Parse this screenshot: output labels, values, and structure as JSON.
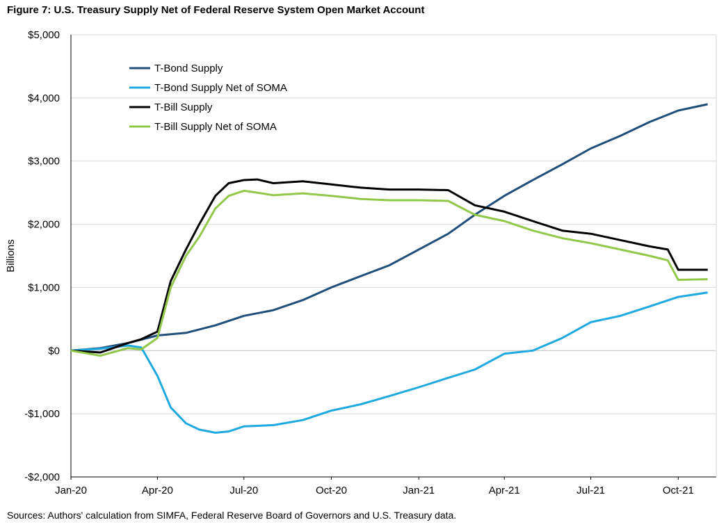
{
  "figure": {
    "title": "Figure 7: U.S. Treasury Supply Net of Federal Reserve System Open Market Account",
    "source": "Sources: Authors' calculation from SIMFA, Federal Reserve Board of Governors and U.S. Treasury data."
  },
  "chart_data": {
    "type": "line",
    "title": "Figure 7: U.S. Treasury Supply Net of Federal Reserve System Open Market Account",
    "xlabel": "",
    "ylabel": "Billions",
    "ylim": [
      -2000,
      5000
    ],
    "yticks": [
      -2000,
      -1000,
      0,
      1000,
      2000,
      3000,
      4000,
      5000
    ],
    "ytick_labels": [
      "-$2,000",
      "-$1,000",
      "$0",
      "$1,000",
      "$2,000",
      "$3,000",
      "$4,000",
      "$5,000"
    ],
    "xlim": [
      "2020-01-01",
      "2021-11-10"
    ],
    "xticks": [
      "2020-01-01",
      "2020-04-01",
      "2020-07-01",
      "2020-10-01",
      "2021-01-01",
      "2021-04-01",
      "2021-07-01",
      "2021-10-01"
    ],
    "xtick_labels": [
      "Jan-20",
      "Apr-20",
      "Jul-20",
      "Oct-20",
      "Jan-21",
      "Apr-21",
      "Jul-21",
      "Oct-21"
    ],
    "grid": "horizontal",
    "legend_position": "top-left",
    "series": [
      {
        "name": "T-Bond Supply",
        "color": "#1f4e79",
        "x": [
          "2020-01-01",
          "2020-02-01",
          "2020-03-01",
          "2020-04-01",
          "2020-05-01",
          "2020-06-01",
          "2020-07-01",
          "2020-08-01",
          "2020-09-01",
          "2020-10-01",
          "2020-11-01",
          "2020-12-01",
          "2021-01-01",
          "2021-02-01",
          "2021-03-01",
          "2021-04-01",
          "2021-05-01",
          "2021-06-01",
          "2021-07-01",
          "2021-08-01",
          "2021-09-01",
          "2021-10-01",
          "2021-11-01"
        ],
        "values": [
          0,
          40,
          120,
          240,
          280,
          400,
          550,
          640,
          800,
          1000,
          1180,
          1350,
          1600,
          1850,
          2150,
          2450,
          2700,
          2950,
          3200,
          3400,
          3620,
          3800,
          3900
        ]
      },
      {
        "name": "T-Bond Supply Net of SOMA",
        "color": "#1fa9e1",
        "x": [
          "2020-01-01",
          "2020-02-01",
          "2020-03-01",
          "2020-03-15",
          "2020-04-01",
          "2020-04-15",
          "2020-05-01",
          "2020-05-15",
          "2020-06-01",
          "2020-06-15",
          "2020-07-01",
          "2020-08-01",
          "2020-09-01",
          "2020-10-01",
          "2020-11-01",
          "2020-12-01",
          "2021-01-01",
          "2021-02-01",
          "2021-03-01",
          "2021-04-01",
          "2021-05-01",
          "2021-06-01",
          "2021-07-01",
          "2021-08-01",
          "2021-09-01",
          "2021-10-01",
          "2021-11-01"
        ],
        "values": [
          0,
          30,
          80,
          50,
          -400,
          -900,
          -1150,
          -1250,
          -1300,
          -1280,
          -1200,
          -1180,
          -1100,
          -950,
          -850,
          -720,
          -580,
          -430,
          -300,
          -50,
          0,
          200,
          450,
          550,
          700,
          850,
          920
        ]
      },
      {
        "name": "T-Bill Supply",
        "color": "#000000",
        "x": [
          "2020-01-01",
          "2020-02-01",
          "2020-03-01",
          "2020-03-15",
          "2020-04-01",
          "2020-04-15",
          "2020-05-01",
          "2020-05-15",
          "2020-06-01",
          "2020-06-15",
          "2020-07-01",
          "2020-07-15",
          "2020-08-01",
          "2020-09-01",
          "2020-10-01",
          "2020-11-01",
          "2020-12-01",
          "2021-01-01",
          "2021-02-01",
          "2021-03-01",
          "2021-04-01",
          "2021-05-01",
          "2021-06-01",
          "2021-07-01",
          "2021-08-01",
          "2021-09-01",
          "2021-09-20",
          "2021-10-01",
          "2021-11-01"
        ],
        "values": [
          0,
          -30,
          120,
          180,
          300,
          1100,
          1600,
          2000,
          2450,
          2650,
          2700,
          2710,
          2650,
          2680,
          2630,
          2580,
          2550,
          2550,
          2540,
          2300,
          2200,
          2050,
          1900,
          1850,
          1750,
          1650,
          1600,
          1280,
          1280
        ]
      },
      {
        "name": "T-Bill Supply Net of SOMA",
        "color": "#92c84a",
        "x": [
          "2020-01-01",
          "2020-02-01",
          "2020-03-01",
          "2020-03-15",
          "2020-04-01",
          "2020-04-15",
          "2020-05-01",
          "2020-05-15",
          "2020-06-01",
          "2020-06-15",
          "2020-07-01",
          "2020-07-15",
          "2020-08-01",
          "2020-09-01",
          "2020-10-01",
          "2020-11-01",
          "2020-12-01",
          "2021-01-01",
          "2021-02-01",
          "2021-03-01",
          "2021-04-01",
          "2021-05-01",
          "2021-06-01",
          "2021-07-01",
          "2021-08-01",
          "2021-09-01",
          "2021-09-20",
          "2021-10-01",
          "2021-11-01"
        ],
        "values": [
          0,
          -80,
          40,
          20,
          200,
          1000,
          1500,
          1800,
          2250,
          2450,
          2530,
          2500,
          2460,
          2490,
          2450,
          2400,
          2380,
          2380,
          2370,
          2150,
          2050,
          1900,
          1780,
          1700,
          1600,
          1500,
          1430,
          1120,
          1130
        ]
      }
    ]
  }
}
